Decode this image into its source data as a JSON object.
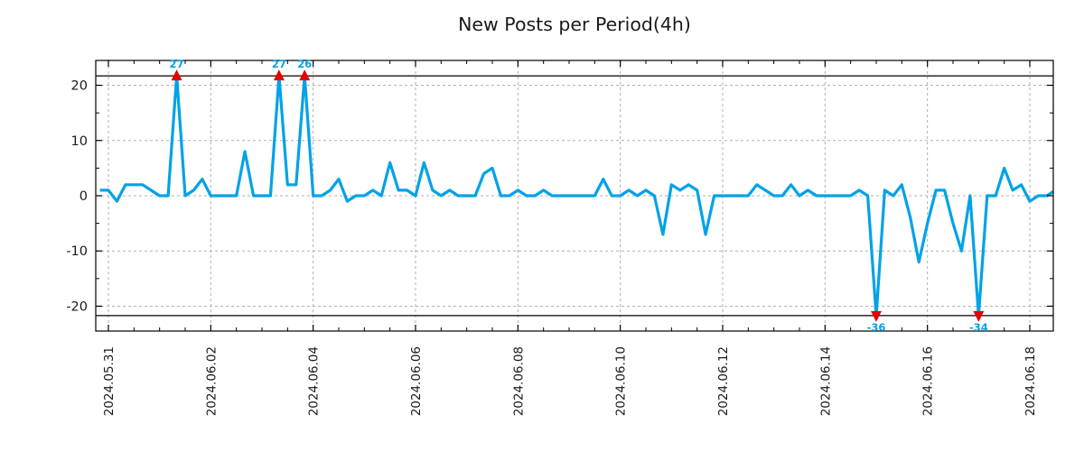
{
  "title": "New Posts per Period(4h)",
  "chart_data": {
    "type": "line",
    "title": "New Posts per Period(4h)",
    "period": "4h",
    "x_start": "2024-05-30 20:00",
    "x_step_hours": 4,
    "values": [
      1,
      1,
      -1,
      2,
      2,
      2,
      1,
      0,
      0,
      27,
      0,
      1,
      3,
      0,
      0,
      0,
      0,
      8,
      0,
      0,
      0,
      27,
      2,
      2,
      26,
      0,
      0,
      1,
      3,
      -1,
      0,
      0,
      1,
      0,
      6,
      1,
      1,
      0,
      6,
      1,
      0,
      1,
      0,
      0,
      0,
      4,
      5,
      0,
      0,
      1,
      0,
      0,
      1,
      0,
      0,
      0,
      0,
      0,
      0,
      3,
      0,
      0,
      1,
      0,
      1,
      0,
      -7,
      2,
      1,
      2,
      1,
      -7,
      0,
      0,
      0,
      0,
      0,
      2,
      1,
      0,
      0,
      2,
      0,
      1,
      0,
      0,
      0,
      0,
      0,
      1,
      0,
      -36,
      1,
      0,
      2,
      -4,
      -12,
      -5,
      1,
      1,
      -5,
      -10,
      0,
      -34,
      0,
      0,
      5,
      1,
      2,
      -1,
      0,
      0,
      1
    ],
    "x_tick_labels": [
      "2024.05.31",
      "2024.06.02",
      "2024.06.04",
      "2024.06.06",
      "2024.06.08",
      "2024.06.10",
      "2024.06.12",
      "2024.06.14",
      "2024.06.16",
      "2024.06.18"
    ],
    "x_tick_indices": [
      1,
      13,
      25,
      37,
      49,
      61,
      73,
      85,
      97,
      109
    ],
    "x_minor_tick_every_points": 3,
    "y_ticks": [
      -20,
      -10,
      0,
      10,
      20
    ],
    "y_minor_ticks": [
      -15,
      -5,
      5,
      15
    ],
    "ylim": [
      -24.5,
      24.5
    ],
    "clip_value": 21.7,
    "grid": true,
    "legend": "none",
    "annotations": {
      "peaks": [
        {
          "index": 9,
          "label": "27",
          "value": 27
        },
        {
          "index": 21,
          "label": "27",
          "value": 27
        },
        {
          "index": 24,
          "label": "26",
          "value": 26
        }
      ],
      "dips": [
        {
          "index": 91,
          "label": "-36",
          "value": -36
        },
        {
          "index": 103,
          "label": "-34",
          "value": -34
        }
      ]
    },
    "colors": {
      "line": "#00a2e8",
      "marker": "#e50000",
      "grid": "#b0b0b0",
      "axis": "#000000",
      "text": "#1a1a1a",
      "annotation_text": "#00a2e8",
      "background": "#ffffff"
    }
  }
}
